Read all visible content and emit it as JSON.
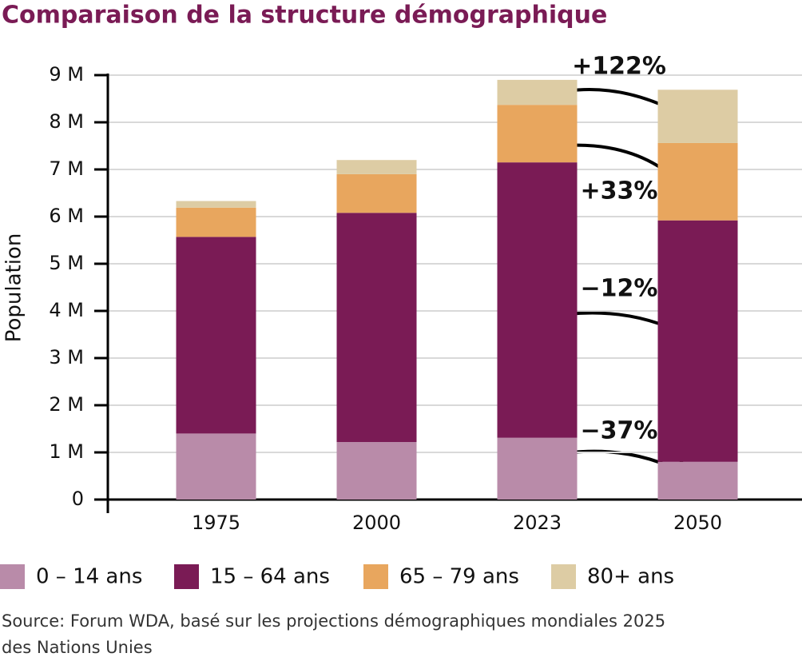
{
  "chart_data": {
    "type": "stacked-bar",
    "title": "Comparaison de la structure démographique",
    "y_label": "Population",
    "categories": [
      "1975",
      "2000",
      "2023",
      "2050"
    ],
    "series": [
      {
        "name": "0 – 14 ans",
        "color": "#b98ba9",
        "values": [
          1.4,
          1.22,
          1.31,
          0.8
        ]
      },
      {
        "name": "15 – 64 ans",
        "color": "#7a1b55",
        "values": [
          4.17,
          4.86,
          5.84,
          5.12
        ]
      },
      {
        "name": "65 – 79 ans",
        "color": "#e8a65e",
        "values": [
          0.62,
          0.82,
          1.22,
          1.64
        ]
      },
      {
        "name": "80+ ans",
        "color": "#ddcca4",
        "values": [
          0.14,
          0.3,
          0.53,
          1.13
        ]
      }
    ],
    "ylim": [
      0,
      9
    ],
    "yticks": [
      0,
      {
        "value": 1,
        "label": "1 M"
      },
      {
        "value": 2,
        "label": "2 M"
      },
      {
        "value": 3,
        "label": "3 M"
      },
      {
        "value": 4,
        "label": "4 M"
      },
      {
        "value": 5,
        "label": "5 M"
      },
      {
        "value": 6,
        "label": "6 M"
      },
      {
        "value": 7,
        "label": "7 M"
      },
      {
        "value": 8,
        "label": "8 M"
      },
      {
        "value": 9,
        "label": "9 M"
      }
    ],
    "grid": true,
    "annotations": [
      "+122%",
      "+33%",
      "−12%",
      "−37%"
    ],
    "source": [
      "Source: Forum WDA, basé sur les projections démographiques mondiales 2025",
      "des Nations Unies"
    ]
  }
}
